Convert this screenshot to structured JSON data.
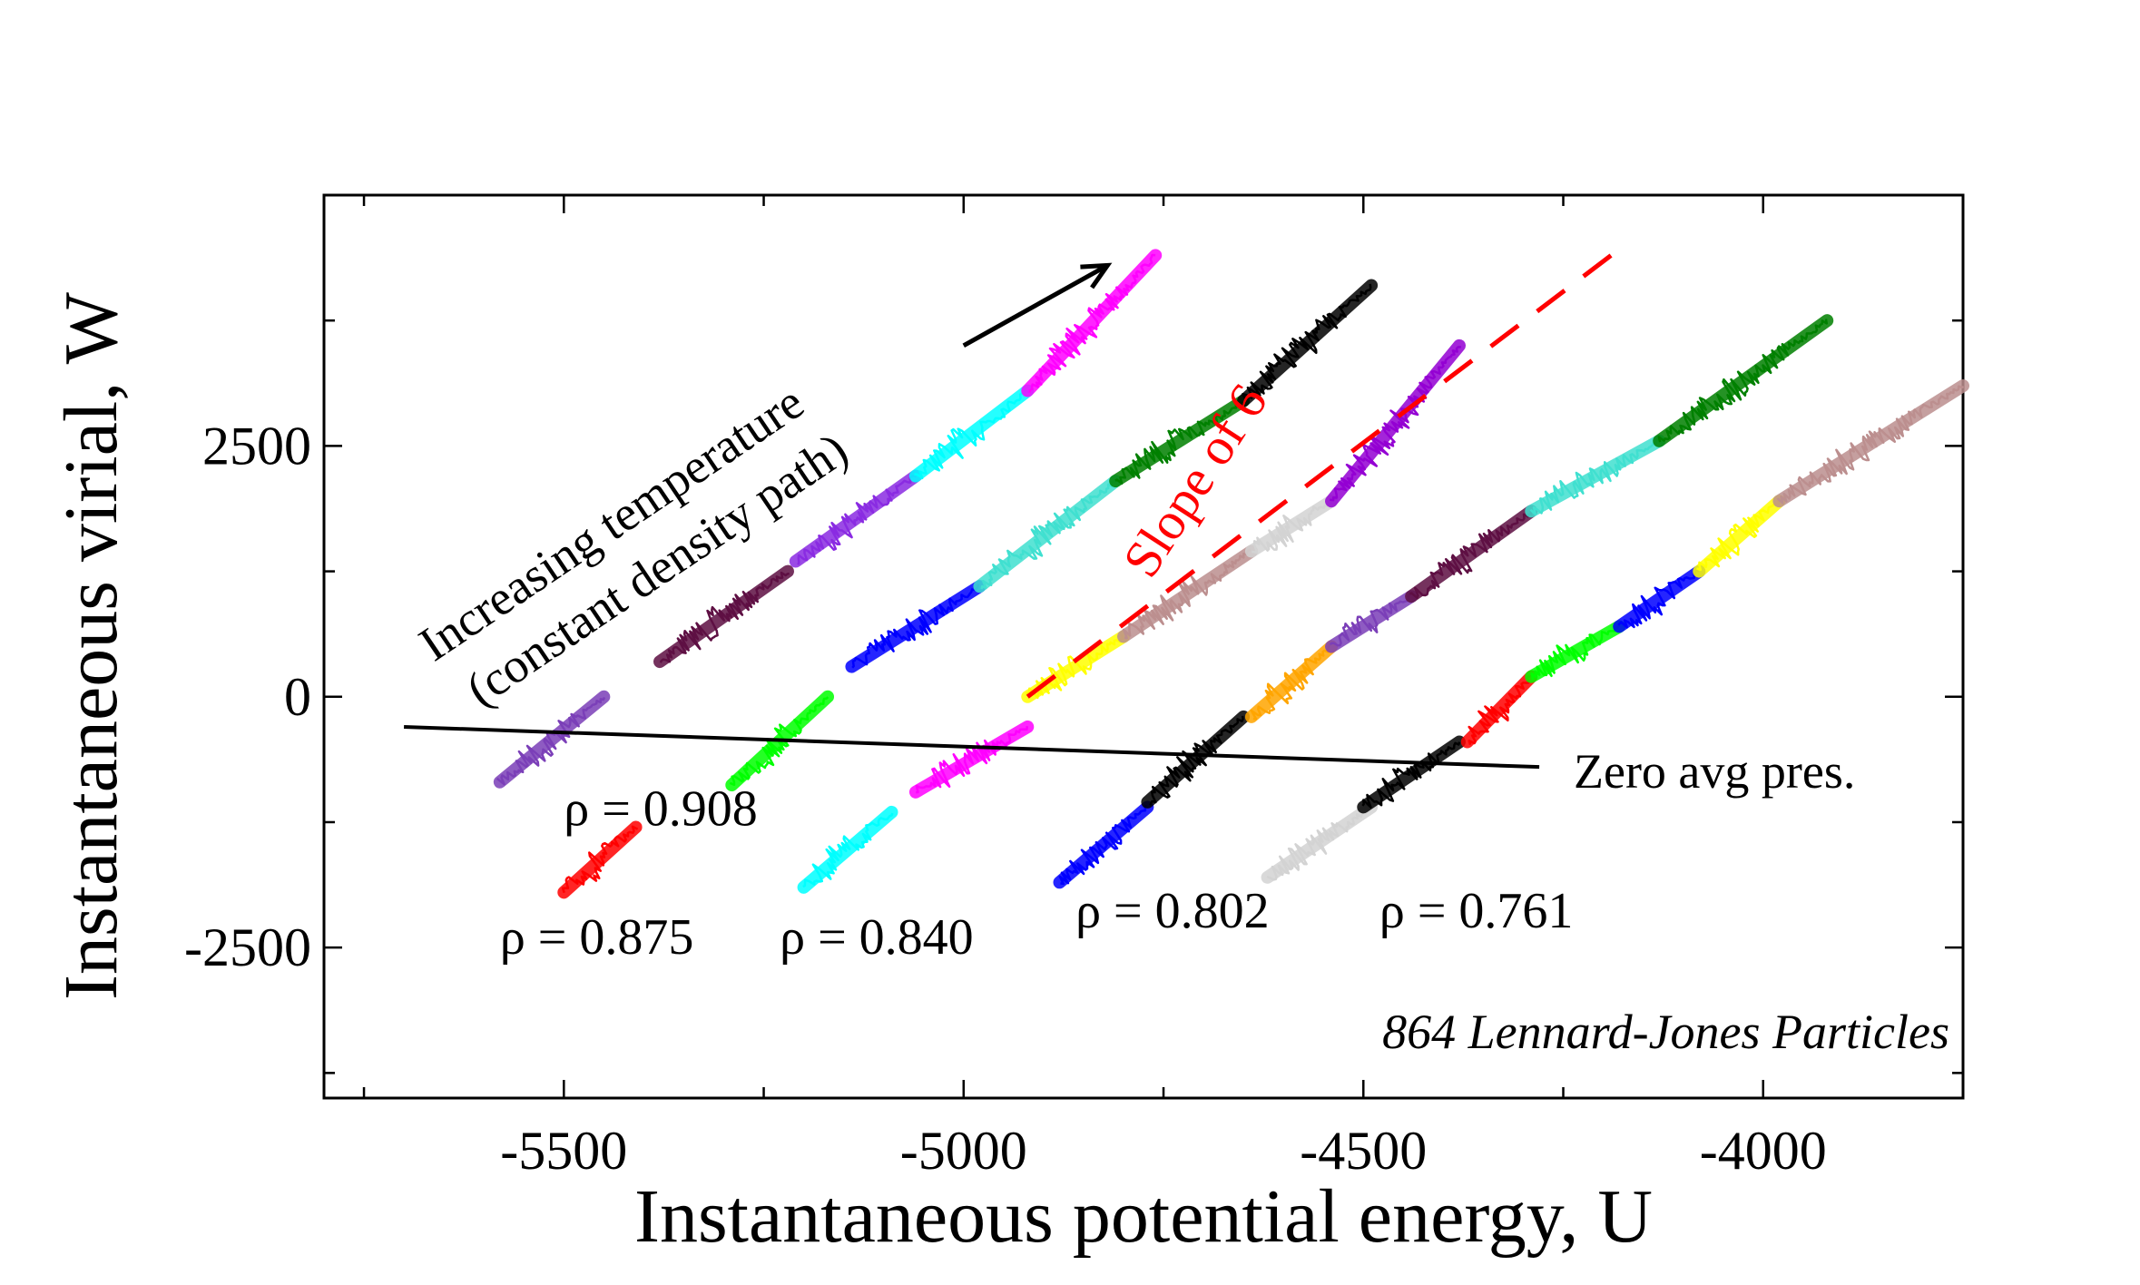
{
  "chart_data": {
    "type": "scatter",
    "title": "",
    "xlabel": "Instantaneous potential energy, U",
    "ylabel": "Instantaneous virial, W",
    "xlim": [
      -5800,
      -3750
    ],
    "ylim": [
      -4000,
      5000
    ],
    "xticks": [
      -5500,
      -5000,
      -4500,
      -4000
    ],
    "xtick_labels": [
      "-5500",
      "-5000",
      "-4500",
      "-4000"
    ],
    "yticks": [
      -2500,
      0,
      2500
    ],
    "ytick_labels": [
      "-2500",
      "0",
      "2500"
    ],
    "grid": false,
    "legend": "none",
    "series": [
      {
        "name": "ρ = 0.908",
        "color": "#7b3fb8",
        "points": [
          [
            -5580,
            -850
          ],
          [
            -5450,
            0
          ]
        ]
      },
      {
        "name": "ρ = 0.908",
        "color": "#5e0f43",
        "points": [
          [
            -5380,
            350
          ],
          [
            -5220,
            1250
          ]
        ]
      },
      {
        "name": "ρ = 0.908",
        "color": "#8a2be2",
        "points": [
          [
            -5210,
            1350
          ],
          [
            -5060,
            2200
          ]
        ]
      },
      {
        "name": "ρ = 0.908",
        "color": "#00ffff",
        "points": [
          [
            -5060,
            2200
          ],
          [
            -4920,
            3050
          ]
        ]
      },
      {
        "name": "ρ = 0.908",
        "color": "#ff00ff",
        "points": [
          [
            -4920,
            3050
          ],
          [
            -4760,
            4400
          ]
        ]
      },
      {
        "name": "ρ = 0.875",
        "color": "#ff0000",
        "points": [
          [
            -5500,
            -1950
          ],
          [
            -5410,
            -1300
          ]
        ]
      },
      {
        "name": "ρ = 0.875",
        "color": "#00ff00",
        "points": [
          [
            -5290,
            -880
          ],
          [
            -5170,
            0
          ]
        ]
      },
      {
        "name": "ρ = 0.875",
        "color": "#0000ff",
        "points": [
          [
            -5140,
            300
          ],
          [
            -4980,
            1100
          ]
        ]
      },
      {
        "name": "ρ = 0.875",
        "color": "#40e0d0",
        "points": [
          [
            -4980,
            1100
          ],
          [
            -4810,
            2150
          ]
        ]
      },
      {
        "name": "ρ = 0.875",
        "color": "#008000",
        "points": [
          [
            -4810,
            2150
          ],
          [
            -4650,
            2950
          ]
        ]
      },
      {
        "name": "ρ = 0.875",
        "color": "#000000",
        "points": [
          [
            -4650,
            2950
          ],
          [
            -4490,
            4100
          ]
        ]
      },
      {
        "name": "ρ = 0.840",
        "color": "#00ffff",
        "points": [
          [
            -5200,
            -1900
          ],
          [
            -5090,
            -1150
          ]
        ]
      },
      {
        "name": "ρ = 0.840",
        "color": "#ff00ff",
        "points": [
          [
            -5060,
            -950
          ],
          [
            -4920,
            -300
          ]
        ]
      },
      {
        "name": "ρ = 0.840",
        "color": "#ffff00",
        "points": [
          [
            -4920,
            0
          ],
          [
            -4800,
            600
          ]
        ]
      },
      {
        "name": "ρ = 0.840",
        "color": "#bc8f8f",
        "points": [
          [
            -4800,
            600
          ],
          [
            -4640,
            1450
          ]
        ]
      },
      {
        "name": "ρ = 0.840",
        "color": "#d3d3d3",
        "points": [
          [
            -4640,
            1450
          ],
          [
            -4540,
            1950
          ]
        ]
      },
      {
        "name": "ρ = 0.840",
        "color": "#9400d3",
        "points": [
          [
            -4540,
            1950
          ],
          [
            -4380,
            3500
          ]
        ]
      },
      {
        "name": "ρ = 0.802",
        "color": "#0000ff",
        "points": [
          [
            -4880,
            -1850
          ],
          [
            -4770,
            -1100
          ]
        ]
      },
      {
        "name": "ρ = 0.802",
        "color": "#000000",
        "points": [
          [
            -4770,
            -1050
          ],
          [
            -4650,
            -200
          ]
        ]
      },
      {
        "name": "ρ = 0.802",
        "color": "#ffa500",
        "points": [
          [
            -4640,
            -200
          ],
          [
            -4540,
            500
          ]
        ]
      },
      {
        "name": "ρ = 0.802",
        "color": "#7b3fb8",
        "points": [
          [
            -4540,
            500
          ],
          [
            -4440,
            1000
          ]
        ]
      },
      {
        "name": "ρ = 0.802",
        "color": "#5e0f43",
        "points": [
          [
            -4440,
            1000
          ],
          [
            -4290,
            1850
          ]
        ]
      },
      {
        "name": "ρ = 0.802",
        "color": "#40e0d0",
        "points": [
          [
            -4290,
            1850
          ],
          [
            -4130,
            2550
          ]
        ]
      },
      {
        "name": "ρ = 0.802",
        "color": "#008000",
        "points": [
          [
            -4130,
            2550
          ],
          [
            -3920,
            3750
          ]
        ]
      },
      {
        "name": "ρ = 0.761",
        "color": "#d3d3d3",
        "points": [
          [
            -4620,
            -1800
          ],
          [
            -4490,
            -1100
          ]
        ]
      },
      {
        "name": "ρ = 0.761",
        "color": "#000000",
        "points": [
          [
            -4500,
            -1100
          ],
          [
            -4380,
            -450
          ]
        ]
      },
      {
        "name": "ρ = 0.761",
        "color": "#ff0000",
        "points": [
          [
            -4370,
            -450
          ],
          [
            -4290,
            200
          ]
        ]
      },
      {
        "name": "ρ = 0.761",
        "color": "#00ff00",
        "points": [
          [
            -4290,
            200
          ],
          [
            -4180,
            700
          ]
        ]
      },
      {
        "name": "ρ = 0.761",
        "color": "#0000ff",
        "points": [
          [
            -4180,
            700
          ],
          [
            -4080,
            1250
          ]
        ]
      },
      {
        "name": "ρ = 0.761",
        "color": "#ffff00",
        "points": [
          [
            -4080,
            1250
          ],
          [
            -3980,
            1950
          ]
        ]
      },
      {
        "name": "ρ = 0.761",
        "color": "#bc8f8f",
        "points": [
          [
            -3980,
            1950
          ],
          [
            -3750,
            3100
          ]
        ]
      }
    ],
    "zero_pressure_line": {
      "label": "Zero avg pres.",
      "color": "#000000",
      "points": [
        [
          -5700,
          -300
        ],
        [
          -4280,
          -700
        ]
      ]
    },
    "slope_line": {
      "label": "Slope of 6",
      "color": "#ff0000",
      "slope": 6,
      "points": [
        [
          -4920,
          0
        ],
        [
          -4190,
          4400
        ]
      ]
    },
    "temperature_arrow": {
      "color": "#000000",
      "points": [
        [
          -5000,
          3500
        ],
        [
          -4820,
          4300
        ]
      ]
    },
    "annotations": {
      "increasing_temperature": "Increasing temperature",
      "constant_density": "(constant density path)",
      "slope": "Slope of 6",
      "zero_pressure": "Zero avg pres.",
      "system": "864 Lennard-Jones Particles"
    },
    "density_labels": [
      {
        "text": "ρ = 0.908",
        "at": [
          -5500,
          -1280
        ]
      },
      {
        "text": "ρ = 0.875",
        "at": [
          -5580,
          -2560
        ]
      },
      {
        "text": "ρ = 0.840",
        "at": [
          -5230,
          -2560
        ]
      },
      {
        "text": "ρ = 0.802",
        "at": [
          -4860,
          -2300
        ]
      },
      {
        "text": "ρ = 0.761",
        "at": [
          -4480,
          -2300
        ]
      }
    ]
  }
}
